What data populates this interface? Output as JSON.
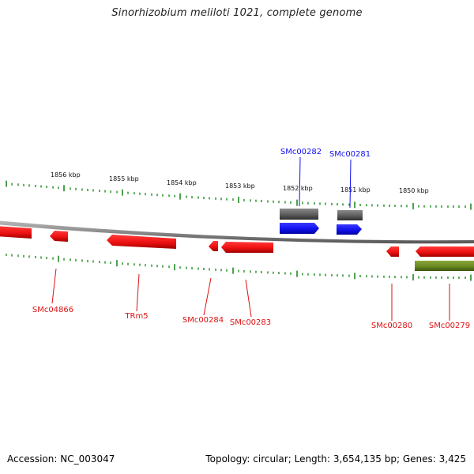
{
  "title": "Sinorhizobium meliloti 1021, complete genome",
  "footer": {
    "accession_label": "Accession:",
    "accession": "NC_003047",
    "topology_label": "Topology:",
    "topology": "circular",
    "length_label": "Length:",
    "length": "3,654,135 bp",
    "genes_label": "Genes:",
    "genes": "3,425"
  },
  "colors": {
    "gene_forward": "#1a1aee",
    "gene_reverse": "#ee1111",
    "rna": "#6b8a22",
    "pseudo": "#666666",
    "tick": "#228b22",
    "backbone": "#8a8a8a"
  },
  "scale": {
    "ticks": [
      {
        "label": "1856 kbp"
      },
      {
        "label": "1855 kbp"
      },
      {
        "label": "1854 kbp"
      },
      {
        "label": "1853 kbp"
      },
      {
        "label": "1852 kbp"
      },
      {
        "label": "1851 kbp"
      },
      {
        "label": "1850 kbp"
      }
    ]
  },
  "features": [
    {
      "label": "SMc00282",
      "strand": "forward",
      "type": "gene"
    },
    {
      "label": "SMc00281",
      "strand": "forward",
      "type": "gene"
    },
    {
      "label": "SMc04866",
      "strand": "reverse",
      "type": "gene"
    },
    {
      "label": "TRm5",
      "strand": "reverse",
      "type": "gene"
    },
    {
      "label": "SMc00284",
      "strand": "reverse",
      "type": "gene"
    },
    {
      "label": "SMc00283",
      "strand": "reverse",
      "type": "gene"
    },
    {
      "label": "SMc00280",
      "strand": "reverse",
      "type": "gene"
    },
    {
      "label": "SMc00279",
      "strand": "reverse",
      "type": "gene"
    }
  ]
}
